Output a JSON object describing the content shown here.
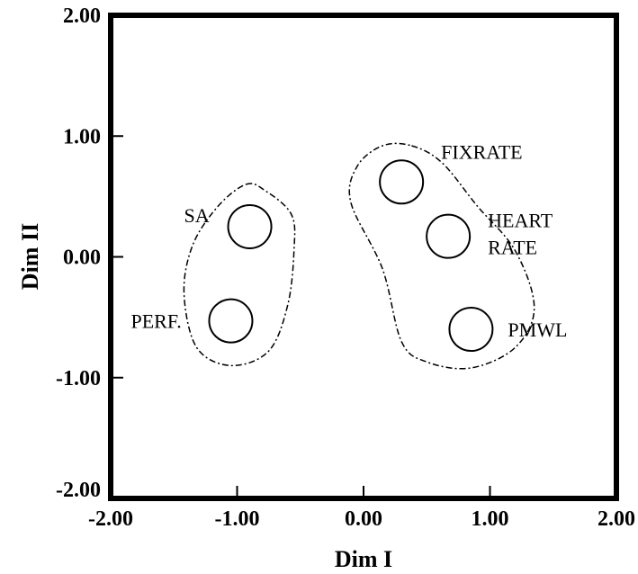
{
  "chart_data": {
    "type": "scatter",
    "title": "",
    "xlabel": "Dim I",
    "ylabel": "Dim II",
    "xlim": [
      -2,
      2
    ],
    "ylim": [
      -2,
      2
    ],
    "x_ticks": [
      -2,
      -1,
      0,
      1,
      2
    ],
    "y_ticks": [
      -2,
      -1,
      0,
      1,
      2
    ],
    "x_tick_labels": [
      "-2.00",
      "-1.00",
      "0.00",
      "1.00",
      "2.00"
    ],
    "y_tick_labels": [
      "-2.00",
      "-1.00",
      "0.00",
      "1.00",
      "2.00"
    ],
    "grid": false,
    "points": [
      {
        "label": "SA",
        "x": -0.9,
        "y": 0.25
      },
      {
        "label": "PERF.",
        "x": -1.05,
        "y": -0.53
      },
      {
        "label": "FIXRATE",
        "x": 0.3,
        "y": 0.62
      },
      {
        "label": "HEART RATE",
        "x": 0.67,
        "y": 0.17
      },
      {
        "label": "PMWL",
        "x": 0.85,
        "y": -0.6
      }
    ],
    "clusters": [
      {
        "members": [
          "SA",
          "PERF."
        ],
        "outline": [
          [
            -0.93,
            0.6
          ],
          [
            -0.78,
            0.55
          ],
          [
            -0.57,
            0.35
          ],
          [
            -0.55,
            0.05
          ],
          [
            -0.6,
            -0.4
          ],
          [
            -0.75,
            -0.78
          ],
          [
            -1.05,
            -0.9
          ],
          [
            -1.32,
            -0.75
          ],
          [
            -1.42,
            -0.3
          ],
          [
            -1.35,
            0.1
          ],
          [
            -1.15,
            0.42
          ]
        ]
      },
      {
        "members": [
          "FIXRATE",
          "HEART RATE",
          "PMWL"
        ],
        "outline": [
          [
            0.38,
            0.92
          ],
          [
            0.62,
            0.78
          ],
          [
            0.9,
            0.42
          ],
          [
            1.2,
            0.05
          ],
          [
            1.35,
            -0.42
          ],
          [
            1.2,
            -0.75
          ],
          [
            0.85,
            -0.92
          ],
          [
            0.5,
            -0.87
          ],
          [
            0.3,
            -0.7
          ],
          [
            0.15,
            -0.1
          ],
          [
            -0.1,
            0.45
          ],
          [
            -0.05,
            0.75
          ],
          [
            0.15,
            0.92
          ]
        ]
      }
    ]
  }
}
